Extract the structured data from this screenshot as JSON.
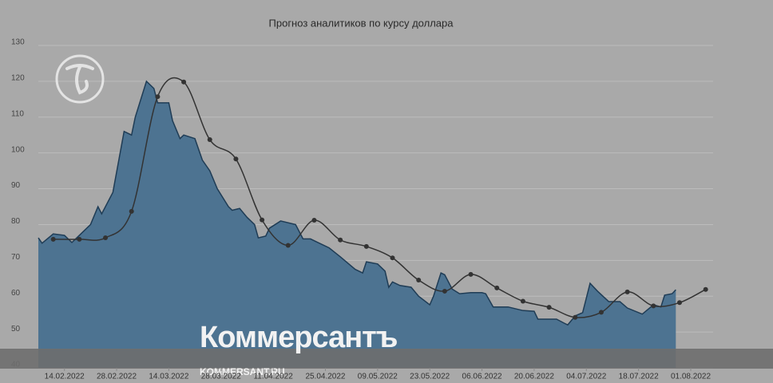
{
  "chart_data": {
    "type": "area-line",
    "title": "Прогноз аналитиков по курсу доллара",
    "xlim": [
      "07.02.2022",
      "07.08.2022"
    ],
    "xticks": [
      "14.02.2022",
      "28.02.2022",
      "14.03.2022",
      "28.03.2022",
      "11.04.2022",
      "25.04.2022",
      "09.05.2022",
      "23.05.2022",
      "06.06.2022",
      "20.06.2022",
      "04.07.2022",
      "18.07.2022",
      "01.08.2022"
    ],
    "ylim": [
      40,
      130
    ],
    "yticks": [
      40,
      50,
      60,
      70,
      80,
      90,
      100,
      110,
      120,
      130
    ],
    "grid": true,
    "series": [
      {
        "type": "area",
        "color": "#4d7391",
        "line_color": "#1f3c55",
        "x": [
          "07.02.2022",
          "08.02.2022",
          "11.02.2022",
          "14.02.2022",
          "16.02.2022",
          "18.02.2022",
          "21.02.2022",
          "23.02.2022",
          "24.02.2022",
          "27.02.2022",
          "02.03.2022",
          "04.03.2022",
          "05.03.2022",
          "08.03.2022",
          "10.03.2022",
          "11.03.2022",
          "14.03.2022",
          "15.03.2022",
          "17.03.2022",
          "18.03.2022",
          "21.03.2022",
          "23.03.2022",
          "25.03.2022",
          "27.03.2022",
          "30.03.2022",
          "31.03.2022",
          "02.04.2022",
          "04.04.2022",
          "06.04.2022",
          "07.04.2022",
          "09.04.2022",
          "10.04.2022",
          "13.04.2022",
          "17.04.2022",
          "19.04.2022",
          "21.04.2022",
          "23.04.2022",
          "26.04.2022",
          "29.04.2022",
          "03.05.2022",
          "05.05.2022",
          "06.05.2022",
          "09.05.2022",
          "11.05.2022",
          "12.05.2022",
          "13.05.2022",
          "15.05.2022",
          "18.05.2022",
          "20.05.2022",
          "23.05.2022",
          "24.05.2022",
          "26.05.2022",
          "27.05.2022",
          "29.05.2022",
          "31.05.2022",
          "03.06.2022",
          "06.06.2022",
          "07.06.2022",
          "09.06.2022",
          "13.06.2022",
          "17.06.2022",
          "20.06.2022",
          "21.06.2022",
          "26.06.2022",
          "28.06.2022",
          "29.06.2022",
          "01.07.2022",
          "03.07.2022",
          "05.07.2022",
          "07.07.2022",
          "10.07.2022",
          "13.07.2022",
          "15.07.2022",
          "19.07.2022",
          "22.07.2022",
          "24.07.2022",
          "25.07.2022",
          "27.07.2022",
          "28.07.2022"
        ],
        "values": [
          76.3,
          74.8,
          77.4,
          77,
          75,
          77,
          80,
          85,
          83,
          89,
          106,
          105,
          110,
          120,
          118,
          114,
          114,
          109,
          104,
          105,
          104,
          98,
          95,
          90,
          85,
          84,
          84.5,
          82,
          80,
          76.3,
          76.8,
          79,
          81,
          80,
          76,
          76,
          75,
          73.5,
          71,
          67.5,
          66.5,
          69.6,
          69,
          67,
          62.5,
          64,
          63,
          62.5,
          60,
          57.6,
          60,
          66.5,
          66,
          62,
          60.7,
          61,
          61,
          60.7,
          57,
          57,
          56,
          55.8,
          53.6,
          53.6,
          52.5,
          52,
          54.5,
          55.4,
          63.6,
          61.4,
          58.5,
          58.5,
          56.7,
          55,
          57.6,
          57,
          60.3,
          60.7,
          61.8
        ]
      },
      {
        "type": "line",
        "color": "#333333",
        "x": [
          "11.02.2022",
          "18.02.2022",
          "25.02.2022",
          "04.03.2022",
          "11.03.2022",
          "18.03.2022",
          "25.03.2022",
          "01.04.2022",
          "08.04.2022",
          "15.04.2022",
          "22.04.2022",
          "29.04.2022",
          "06.05.2022",
          "13.05.2022",
          "20.05.2022",
          "27.05.2022",
          "03.06.2022",
          "10.06.2022",
          "17.06.2022",
          "24.06.2022",
          "01.07.2022",
          "08.07.2022",
          "15.07.2022",
          "22.07.2022",
          "29.07.2022",
          "05.08.2022"
        ],
        "values": [
          75.9,
          75.9,
          76.3,
          83.7,
          115.7,
          119.8,
          103.7,
          98.3,
          81.3,
          74.2,
          81.2,
          75.7,
          73.9,
          70.7,
          64.5,
          61.4,
          66.1,
          62.3,
          58.6,
          56.9,
          54.1,
          55.5,
          61.2,
          57.3,
          58.2,
          61.9
        ]
      }
    ],
    "watermark": "Коммерсантъ",
    "watermark_url": "KOMMERSANT.RU"
  }
}
